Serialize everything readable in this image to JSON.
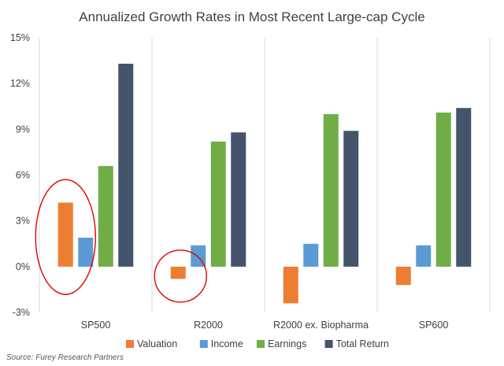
{
  "chart_data": {
    "type": "bar",
    "title": "Annualized Growth Rates in Most Recent Large-cap Cycle",
    "categories": [
      "SP500",
      "R2000",
      "R2000 ex. Biopharma",
      "SP600"
    ],
    "series": [
      {
        "name": "Valuation",
        "color": "#ed7d31",
        "values": [
          4.2,
          -0.8,
          -2.4,
          -1.2
        ]
      },
      {
        "name": "Income",
        "color": "#5b9bd5",
        "values": [
          1.9,
          1.4,
          1.5,
          1.4
        ]
      },
      {
        "name": "Earnings",
        "color": "#70ad47",
        "values": [
          6.6,
          8.2,
          10.0,
          10.1
        ]
      },
      {
        "name": "Total Return",
        "color": "#44546a",
        "values": [
          13.3,
          8.8,
          8.9,
          10.4
        ]
      }
    ],
    "yticks": [
      "15%",
      "12%",
      "9%",
      "6%",
      "3%",
      "0%",
      "-3%"
    ],
    "ytick_values": [
      15,
      12,
      9,
      6,
      3,
      0,
      -3
    ],
    "ylim": [
      -3,
      15
    ],
    "xlabel": "",
    "ylabel": "",
    "grid": "vertical separators between categories",
    "legend_position": "bottom",
    "negative_tick_color": "#c00000",
    "annotations": [
      {
        "type": "ellipse",
        "color": "#e00000",
        "target": "SP500 Valuation bar"
      },
      {
        "type": "ellipse",
        "color": "#e00000",
        "target": "R2000 Valuation bar"
      }
    ]
  },
  "source": "Source: Furey Research Partners"
}
